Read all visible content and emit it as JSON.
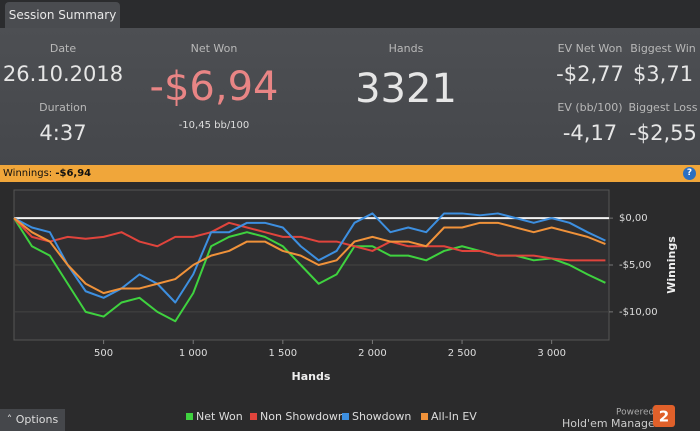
{
  "tab": "Session Summary",
  "stats": {
    "date": {
      "label": "Date",
      "value": "26.10.2018"
    },
    "duration": {
      "label": "Duration",
      "value": "4:37"
    },
    "net_won": {
      "label": "Net Won",
      "value": "-$6,94",
      "sub": "-10,45 bb/100"
    },
    "hands": {
      "label": "Hands",
      "value": "3321"
    },
    "ev_net_won": {
      "label": "EV Net Won",
      "value": "-$2,77"
    },
    "biggest_win": {
      "label": "Biggest Win",
      "value": "$3,71"
    },
    "ev_bb": {
      "label": "EV (bb/100)",
      "value": "-4,17"
    },
    "biggest_loss": {
      "label": "Biggest Loss",
      "value": "-$2,55"
    }
  },
  "winnings_bar": {
    "label": "Winnings:",
    "value": "-$6,94",
    "help": "?"
  },
  "chart_data": {
    "type": "line",
    "xlabel": "Hands",
    "ylabel": "Winnings",
    "x": [
      0,
      100,
      200,
      300,
      400,
      500,
      600,
      700,
      800,
      900,
      1000,
      1100,
      1200,
      1300,
      1400,
      1500,
      1600,
      1700,
      1800,
      1900,
      2000,
      2100,
      2200,
      2300,
      2400,
      2500,
      2600,
      2700,
      2800,
      2900,
      3000,
      3100,
      3200,
      3300
    ],
    "series": [
      {
        "name": "Net Won",
        "color": "#3fd23f",
        "values": [
          0,
          -3,
          -4,
          -7,
          -10,
          -10.5,
          -9,
          -8.5,
          -10,
          -11,
          -8,
          -3,
          -2,
          -1.5,
          -2,
          -3,
          -5,
          -7,
          -6,
          -3,
          -3,
          -4,
          -4,
          -4.5,
          -3.5,
          -3,
          -3.5,
          -4,
          -4,
          -4.5,
          -4.3,
          -5,
          -6,
          -6.9
        ]
      },
      {
        "name": "Non Showdown",
        "color": "#e0443c",
        "values": [
          0,
          -2,
          -2.5,
          -2,
          -2.2,
          -2,
          -1.5,
          -2.5,
          -3,
          -2,
          -2,
          -1.5,
          -0.5,
          -1,
          -1.5,
          -2,
          -2,
          -2.5,
          -2.5,
          -3,
          -3.5,
          -2.5,
          -3,
          -3,
          -3,
          -3.5,
          -3.5,
          -4,
          -4,
          -4,
          -4.3,
          -4.5,
          -4.5,
          -4.5
        ]
      },
      {
        "name": "Showdown",
        "color": "#3d8fe0",
        "values": [
          0,
          -1,
          -1.5,
          -5,
          -7.8,
          -8.5,
          -7.5,
          -6,
          -7,
          -9,
          -6,
          -1.5,
          -1.5,
          -0.5,
          -0.5,
          -1,
          -3,
          -4.5,
          -3.5,
          -0.5,
          0.5,
          -1.5,
          -1,
          -1.5,
          0.5,
          0.5,
          0.3,
          0.5,
          0,
          -0.5,
          0,
          -0.5,
          -1.5,
          -2.4
        ]
      },
      {
        "name": "All-In EV",
        "color": "#f0923a",
        "values": [
          0,
          -1.5,
          -2.5,
          -5,
          -7,
          -8,
          -7.5,
          -7.5,
          -7,
          -6.5,
          -5,
          -4,
          -3.5,
          -2.5,
          -2.5,
          -3.5,
          -4,
          -5,
          -4.5,
          -2.5,
          -2,
          -2.5,
          -2.5,
          -3,
          -1,
          -1,
          -0.5,
          -0.5,
          -1,
          -1.5,
          -1,
          -1.5,
          -2,
          -2.77
        ]
      }
    ],
    "xlim": [
      0,
      3320
    ],
    "ylim": [
      -13,
      3
    ],
    "xticks": [
      500,
      {
        "value": 1000,
        "label": "1 000"
      },
      {
        "value": 1500,
        "label": "1 500"
      },
      {
        "value": 2000,
        "label": "2 000"
      },
      {
        "value": 2500,
        "label": "2 500"
      },
      {
        "value": 3000,
        "label": "3 000"
      }
    ],
    "yticks": [
      {
        "value": 0,
        "label": "$0,00"
      },
      {
        "value": -5,
        "label": "-$5,00"
      },
      {
        "value": -10,
        "label": "-$10,00"
      }
    ],
    "grid": true
  },
  "footer": {
    "options": "Options",
    "powered_by": "Powered by",
    "brand": "Hold'em Manager",
    "logo": "2"
  }
}
